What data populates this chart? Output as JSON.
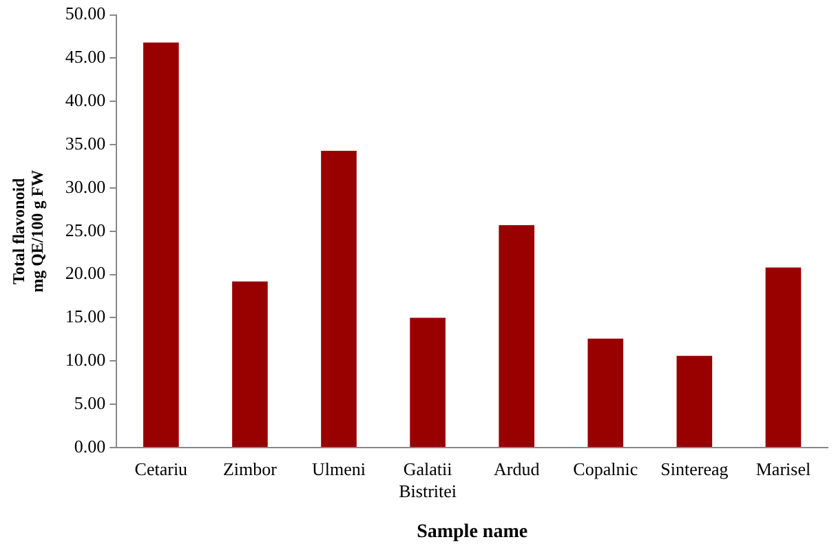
{
  "chart_data": {
    "type": "bar",
    "xlabel": "Sample name",
    "ylabel": "Total flavonoid\nmg QE/100 g FW",
    "categories": [
      "Cetariu",
      "Zimbor",
      "Ulmeni",
      "Galatii Bistritei",
      "Ardud",
      "Copalnic",
      "Sintereag",
      "Marisel"
    ],
    "values": [
      46.8,
      19.2,
      34.3,
      15.0,
      25.7,
      12.6,
      10.6,
      20.8
    ],
    "color": "#990000",
    "ylim": [
      0,
      50
    ],
    "yticks": [
      {
        "value": 0,
        "label": "0.00"
      },
      {
        "value": 5,
        "label": "5.00"
      },
      {
        "value": 10,
        "label": "10.00"
      },
      {
        "value": 15,
        "label": "15.00"
      },
      {
        "value": 20,
        "label": "20.00"
      },
      {
        "value": 25,
        "label": "25.00"
      },
      {
        "value": 30,
        "label": "30.00"
      },
      {
        "value": 35,
        "label": "35.00"
      },
      {
        "value": 40,
        "label": "40.00"
      },
      {
        "value": 45,
        "label": "45.00"
      },
      {
        "value": 50,
        "label": "50.00"
      }
    ],
    "grid": false,
    "legend": false
  }
}
